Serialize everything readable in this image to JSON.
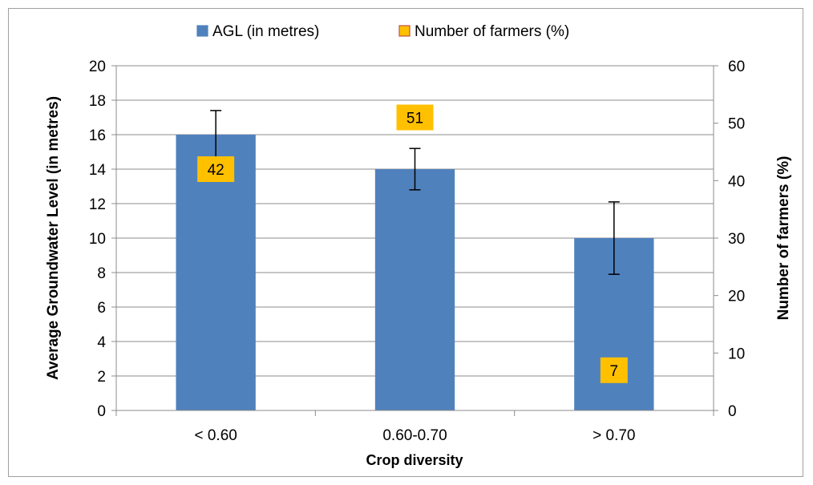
{
  "chart_data": {
    "type": "bar",
    "categories": [
      "< 0.60",
      "0.60-0.70",
      "> 0.70"
    ],
    "xlabel": "Crop diversity",
    "ylabel": "Average Groundwater Level (in metres)",
    "y2label": "Number of farmers (%)",
    "ylim": [
      0,
      20
    ],
    "y2lim": [
      0,
      60
    ],
    "yticks": [
      0,
      2,
      4,
      6,
      8,
      10,
      12,
      14,
      16,
      18,
      20
    ],
    "y2ticks": [
      0,
      10,
      20,
      30,
      40,
      50,
      60
    ],
    "grid": true,
    "legend_position": "top",
    "series": [
      {
        "name": "AGL (in metres)",
        "axis": "left",
        "values": [
          16,
          14,
          10
        ],
        "error_low": [
          14.3,
          12.8,
          7.9
        ],
        "error_high": [
          17.4,
          15.2,
          12.1
        ],
        "color": "#4f81bd"
      },
      {
        "name": "Number of farmers (%)",
        "axis": "right",
        "display": "data-label",
        "values": [
          42,
          51,
          7
        ],
        "color": "#ffc000"
      }
    ]
  }
}
